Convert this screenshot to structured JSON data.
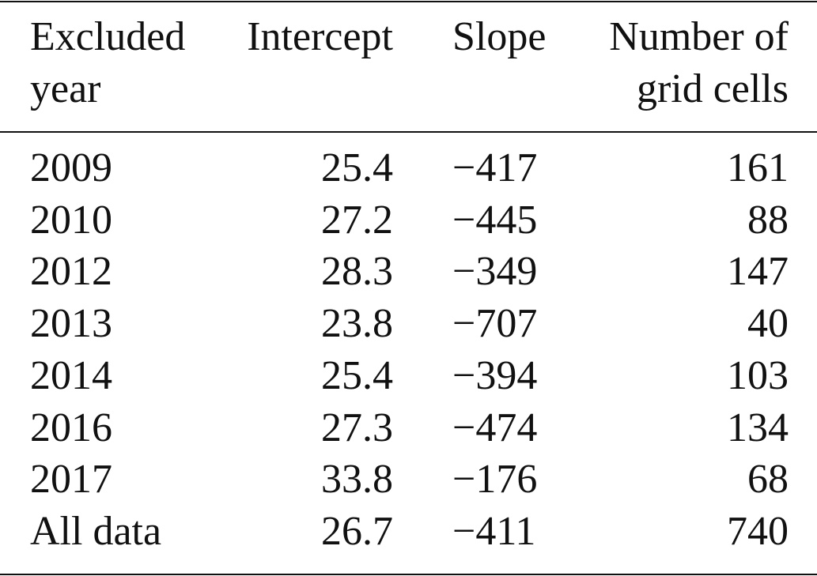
{
  "table": {
    "header": [
      [
        "Excluded",
        "year"
      ],
      [
        "Intercept"
      ],
      [
        "Slope"
      ],
      [
        "Number of",
        "grid cells"
      ]
    ],
    "rows": [
      [
        "2009",
        "25.4",
        "−417",
        "161"
      ],
      [
        "2010",
        "27.2",
        "−445",
        "88"
      ],
      [
        "2012",
        "28.3",
        "−349",
        "147"
      ],
      [
        "2013",
        "23.8",
        "−707",
        "40"
      ],
      [
        "2014",
        "25.4",
        "−394",
        "103"
      ],
      [
        "2016",
        "27.3",
        "−474",
        "134"
      ],
      [
        "2017",
        "33.8",
        "−176",
        "68"
      ],
      [
        "All data",
        "26.7",
        "−411",
        "740"
      ]
    ]
  }
}
